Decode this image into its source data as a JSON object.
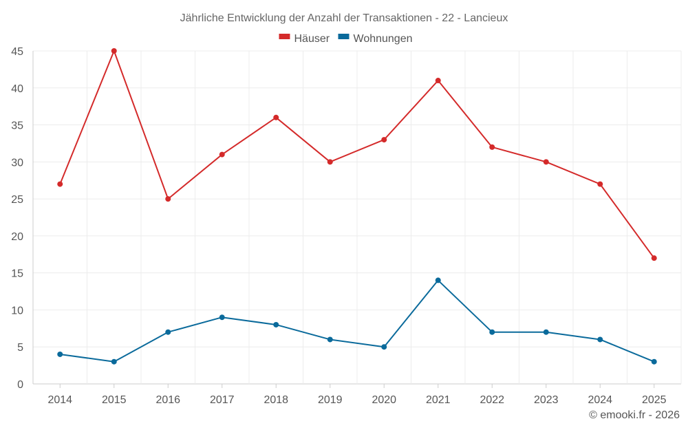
{
  "chart_data": {
    "type": "line",
    "title": "Jährliche Entwicklung der Anzahl der Transaktionen - 22 - Lancieux",
    "x": [
      "2014",
      "2015",
      "2016",
      "2017",
      "2018",
      "2019",
      "2020",
      "2021",
      "2022",
      "2023",
      "2024",
      "2025"
    ],
    "series": [
      {
        "name": "Häuser",
        "color": "#d42a2a",
        "values": [
          27,
          45,
          25,
          31,
          36,
          30,
          33,
          41,
          32,
          30,
          27,
          17
        ]
      },
      {
        "name": "Wohnungen",
        "color": "#0a6a9b",
        "values": [
          4,
          3,
          7,
          9,
          8,
          6,
          5,
          14,
          7,
          7,
          6,
          3
        ]
      }
    ],
    "ylim": [
      0,
      45
    ],
    "yticks": [
      0,
      5,
      10,
      15,
      20,
      25,
      30,
      35,
      40,
      45
    ],
    "grid": true,
    "legend_position": "top-center"
  },
  "credit": "© emooki.fr - 2026"
}
